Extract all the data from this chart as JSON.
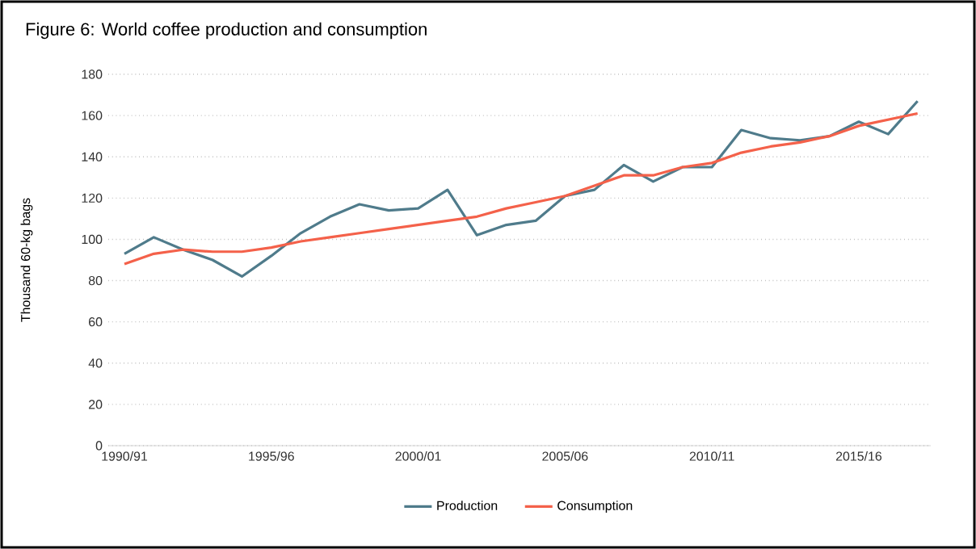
{
  "chart_data": {
    "type": "line",
    "title": "Figure 6: World coffee production and consumption",
    "ylabel": "Thousand 60-kg bags",
    "categories": [
      "1990/91",
      null,
      null,
      null,
      null,
      "1995/96",
      null,
      null,
      null,
      null,
      "2000/01",
      null,
      null,
      null,
      null,
      "2005/06",
      null,
      null,
      null,
      null,
      "2010/11",
      null,
      null,
      null,
      null,
      "2015/16",
      null,
      null
    ],
    "series": [
      {
        "name": "Production",
        "color": "#4f7b8b",
        "values": [
          93,
          101,
          95,
          90,
          82,
          92,
          103,
          111,
          117,
          114,
          115,
          124,
          102,
          107,
          109,
          121,
          124,
          136,
          128,
          135,
          135,
          153,
          149,
          148,
          150,
          157,
          151,
          167
        ]
      },
      {
        "name": "Consumption",
        "color": "#f4614a",
        "values": [
          88,
          93,
          95,
          94,
          94,
          96,
          99,
          101,
          103,
          105,
          107,
          109,
          111,
          115,
          118,
          121,
          126,
          131,
          131,
          135,
          137,
          142,
          145,
          147,
          150,
          155,
          158,
          161
        ]
      }
    ],
    "ylim": [
      0,
      180
    ],
    "yticks": [
      0,
      20,
      40,
      60,
      80,
      100,
      120,
      140,
      160,
      180
    ],
    "grid": "y",
    "legend": "bottom",
    "marker": "none",
    "line_style": "solid"
  }
}
